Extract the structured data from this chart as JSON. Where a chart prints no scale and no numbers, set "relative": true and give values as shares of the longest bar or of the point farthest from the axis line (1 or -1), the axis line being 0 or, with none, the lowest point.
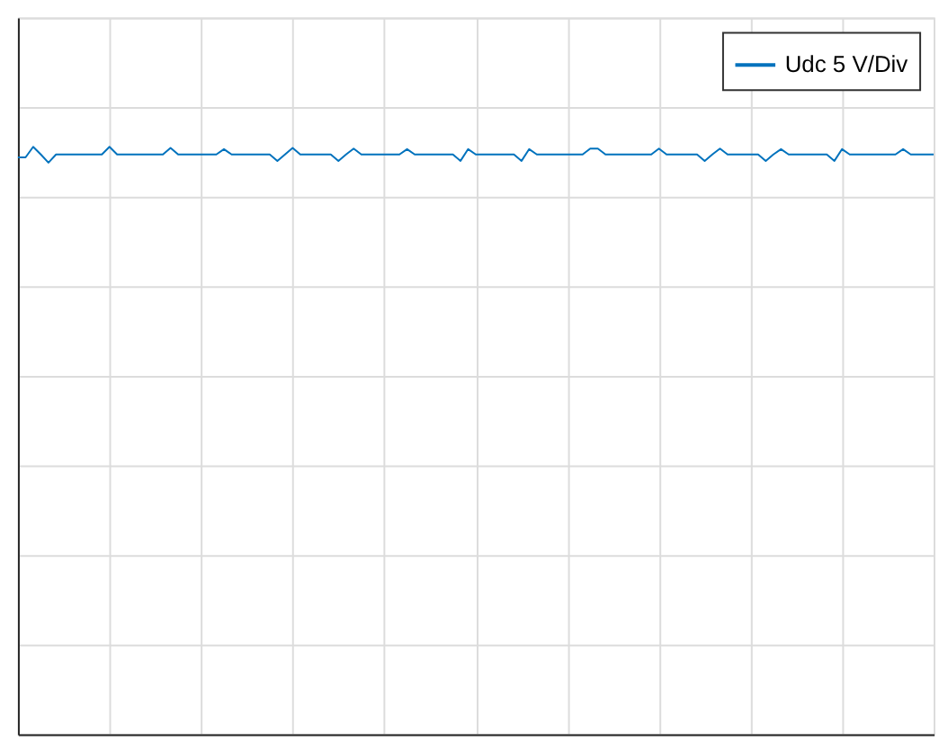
{
  "chart_data": {
    "type": "line",
    "relative": true,
    "grid": true,
    "legend": "top right",
    "marker": "none",
    "line_style": "solid",
    "categories": [
      null,
      null,
      null,
      null,
      null,
      null,
      null,
      null,
      null,
      null,
      null,
      null,
      null,
      null,
      null,
      null,
      null,
      null,
      null,
      null,
      null,
      null,
      null,
      null,
      null,
      null,
      null,
      null,
      null,
      null,
      null,
      null,
      null,
      null,
      null,
      null,
      null,
      null,
      null,
      null,
      null,
      null,
      null,
      null,
      null,
      null,
      null,
      null,
      null,
      null,
      null,
      null,
      null,
      null,
      null,
      null,
      null,
      null,
      null,
      null,
      null,
      null,
      null,
      null,
      null,
      null,
      null,
      null,
      null,
      null,
      null,
      null,
      null,
      null,
      null,
      null,
      null,
      null,
      null,
      null,
      null,
      null,
      null,
      null,
      null,
      null,
      null,
      null,
      null,
      null,
      null,
      null,
      null,
      null,
      null,
      null,
      null,
      null,
      null,
      null,
      null,
      null,
      null,
      null,
      null,
      null,
      null,
      null,
      null,
      null,
      null,
      null,
      null,
      null,
      null,
      null,
      null,
      null,
      null,
      null,
      null
    ],
    "series": [
      {
        "name": "Udc 5 V/Div",
        "color": "#0072bd",
        "values": [
          0.982,
          0.982,
          1.0,
          0.987,
          0.973,
          0.987,
          0.987,
          0.987,
          0.987,
          0.987,
          0.987,
          0.987,
          1.0,
          0.987,
          0.987,
          0.987,
          0.987,
          0.987,
          0.987,
          0.987,
          0.998,
          0.987,
          0.987,
          0.987,
          0.987,
          0.987,
          0.987,
          0.996,
          0.987,
          0.987,
          0.987,
          0.987,
          0.987,
          0.987,
          0.976,
          0.987,
          0.998,
          0.987,
          0.987,
          0.987,
          0.987,
          0.987,
          0.976,
          0.987,
          0.997,
          0.987,
          0.987,
          0.987,
          0.987,
          0.987,
          0.987,
          0.996,
          0.987,
          0.987,
          0.987,
          0.987,
          0.987,
          0.987,
          0.976,
          0.996,
          0.987,
          0.987,
          0.987,
          0.987,
          0.987,
          0.987,
          0.976,
          0.996,
          0.987,
          0.987,
          0.987,
          0.987,
          0.987,
          0.987,
          0.987,
          0.997,
          0.997,
          0.987,
          0.987,
          0.987,
          0.987,
          0.987,
          0.987,
          0.987,
          0.997,
          0.987,
          0.987,
          0.987,
          0.987,
          0.987,
          0.976,
          0.987,
          0.997,
          0.987,
          0.987,
          0.987,
          0.987,
          0.987,
          0.976,
          0.987,
          0.996,
          0.987,
          0.987,
          0.987,
          0.987,
          0.987,
          0.987,
          0.976,
          0.996,
          0.987,
          0.987,
          0.987,
          0.987,
          0.987,
          0.987,
          0.987,
          0.996,
          0.987,
          0.987,
          0.987,
          0.987
        ]
      }
    ]
  }
}
